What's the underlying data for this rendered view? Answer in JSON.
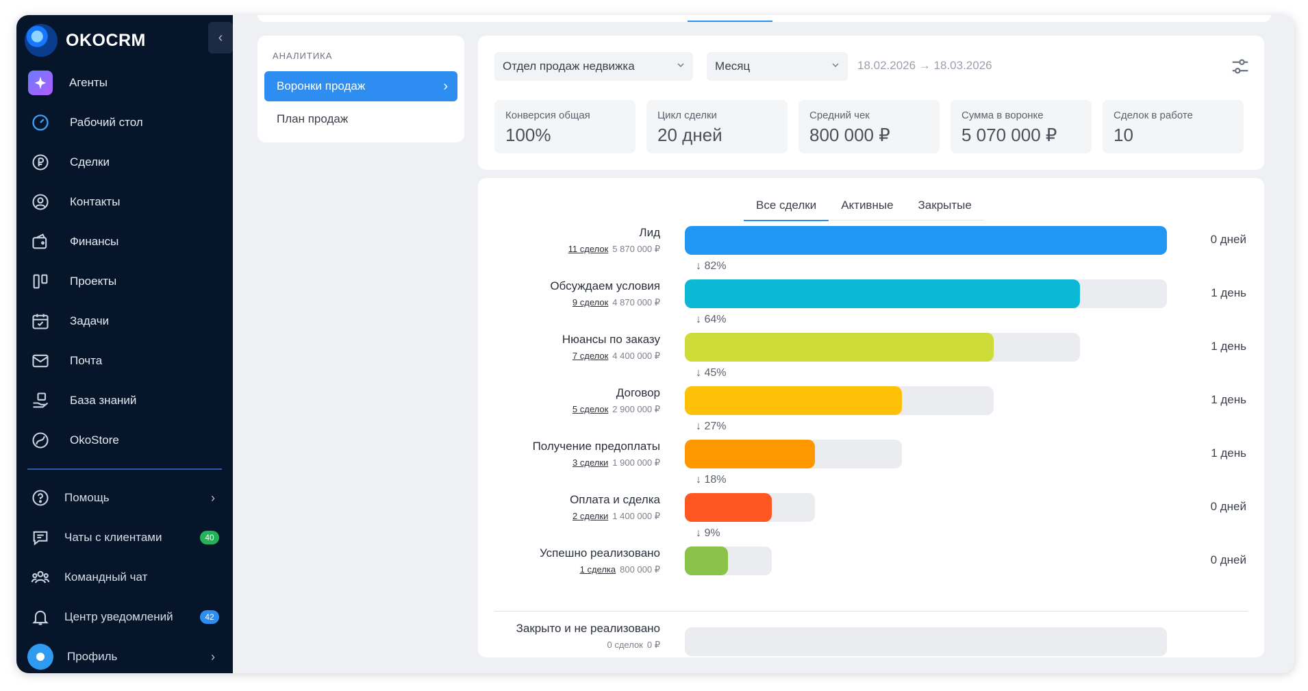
{
  "brand": {
    "name": "OKOCRM"
  },
  "sidebar": {
    "items": [
      {
        "label": "Агенты",
        "icon": "sparkle-icon"
      },
      {
        "label": "Рабочий стол",
        "icon": "dashboard-gauge-icon"
      },
      {
        "label": "Сделки",
        "icon": "ruble-coin-icon"
      },
      {
        "label": "Контакты",
        "icon": "user-circle-icon"
      },
      {
        "label": "Финансы",
        "icon": "wallet-icon"
      },
      {
        "label": "Проекты",
        "icon": "kanban-icon"
      },
      {
        "label": "Задачи",
        "icon": "calendar-check-icon"
      },
      {
        "label": "Почта",
        "icon": "mail-icon"
      },
      {
        "label": "База знаний",
        "icon": "knowledge-hand-icon"
      },
      {
        "label": "OkoStore",
        "icon": "store-swirl-icon"
      }
    ],
    "bottom": [
      {
        "label": "Помощь",
        "icon": "help-circle-icon"
      },
      {
        "label": "Чаты с клиентами",
        "icon": "chat-icon",
        "badge": "40"
      },
      {
        "label": "Командный чат",
        "icon": "team-icon"
      },
      {
        "label": "Центр уведомлений",
        "icon": "bell-icon",
        "badge": "42"
      },
      {
        "label": "Профиль",
        "icon": "profile-avatar"
      }
    ]
  },
  "analytics_menu": {
    "title": "АНАЛИТИКА",
    "active": "Воронки продаж",
    "items": [
      "План продаж"
    ]
  },
  "filters": {
    "department": "Отдел продаж недвижка",
    "period": "Месяц",
    "date_range": "18.02.2026 → 18.03.2026"
  },
  "kpis": [
    {
      "label": "Конверсия общая",
      "value": "100%"
    },
    {
      "label": "Цикл сделки",
      "value": "20 дней"
    },
    {
      "label": "Средний чек",
      "value": "800 000 ₽"
    },
    {
      "label": "Сумма в воронке",
      "value": "5 070 000 ₽"
    },
    {
      "label": "Сделок в работе",
      "value": "10"
    }
  ],
  "tabs": [
    "Все сделки",
    "Активные",
    "Закрытые"
  ],
  "chart_data": {
    "type": "bar",
    "orientation": "horizontal-funnel",
    "stages": [
      {
        "name": "Лид",
        "deals": "11 сделок",
        "sum": "5 870 000 ₽",
        "days": "0 дней",
        "color": "#2196f3",
        "track": 1.0,
        "fill": 1.0
      },
      {
        "name": "Обсуждаем условия",
        "deals": "9 сделок",
        "sum": "4 870 000 ₽",
        "days": "1 день",
        "color": "#0bb8d6",
        "track": 1.0,
        "fill": 0.82,
        "conversion": "82%"
      },
      {
        "name": "Нюансы по заказу",
        "deals": "7 сделок",
        "sum": "4 400 000 ₽",
        "days": "1 день",
        "color": "#cddc39",
        "track": 0.82,
        "fill": 0.64,
        "conversion": "64%"
      },
      {
        "name": "Договор",
        "deals": "5 сделок",
        "sum": "2 900 000 ₽",
        "days": "1 день",
        "color": "#ffc107",
        "track": 0.64,
        "fill": 0.45,
        "conversion": "45%"
      },
      {
        "name": "Получение предоплаты",
        "deals": "3 сделки",
        "sum": "1 900 000 ₽",
        "days": "1 день",
        "color": "#ff9800",
        "track": 0.45,
        "fill": 0.27,
        "conversion": "27%"
      },
      {
        "name": "Оплата и сделка",
        "deals": "2 сделки",
        "sum": "1 400 000 ₽",
        "days": "0 дней",
        "color": "#ff5722",
        "track": 0.27,
        "fill": 0.18,
        "conversion": "18%"
      },
      {
        "name": "Успешно реализовано",
        "deals": "1 сделка",
        "sum": "800 000 ₽",
        "days": "0 дней",
        "color": "#8bc34a",
        "track": 0.18,
        "fill": 0.09,
        "conversion": "9%"
      }
    ],
    "lost": {
      "name": "Закрыто и не реализовано",
      "deals": "0 сделок",
      "sum": "0 ₽",
      "fill": 0.0
    }
  }
}
